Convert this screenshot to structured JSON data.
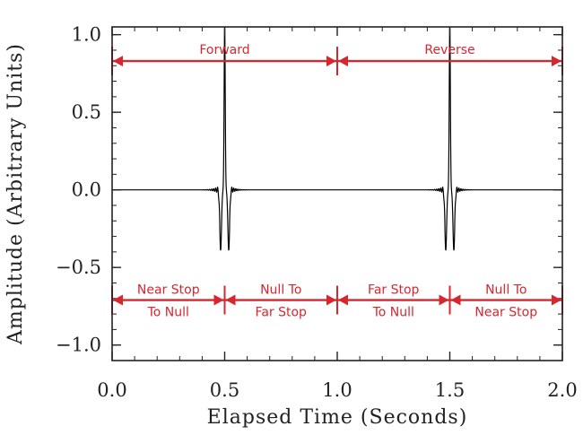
{
  "chart_data": {
    "type": "line",
    "xlabel": "Elapsed Time (Seconds)",
    "ylabel": "Amplitude (Arbitrary Units)",
    "xlim": [
      0.0,
      2.0
    ],
    "ylim": [
      -1.1,
      1.05
    ],
    "x_ticks": [
      "0.0",
      "0.5",
      "1.0",
      "1.5",
      "2.0"
    ],
    "y_ticks": [
      "1.0",
      "0.5",
      "0.0",
      "−0.5",
      "−1.0"
    ],
    "x_tick_values": [
      0.0,
      0.5,
      1.0,
      1.5,
      2.0
    ],
    "y_tick_values": [
      1.0,
      0.5,
      0.0,
      -0.5,
      -1.0
    ],
    "series": [
      {
        "color": "#000000",
        "description_points": "baseline 0 with small ringing; at each pulse two negative lobes near -0.39 and a central spike to about 1.05",
        "pulses": [
          {
            "center": 0.5,
            "lobe_left_x": 0.482,
            "lobe_right_x": 0.518,
            "lobe_y": -0.39,
            "peak_y": 1.05
          },
          {
            "center": 1.5,
            "lobe_left_x": 1.482,
            "lobe_right_x": 1.518,
            "lobe_y": -0.39,
            "peak_y": 1.05
          }
        ]
      }
    ],
    "annotation_color": "#d8262e",
    "dividers_x": [
      0.0,
      0.5,
      1.0,
      1.5,
      2.0
    ],
    "top_row": {
      "y": 0.83,
      "segments": [
        {
          "from": 0.0,
          "to": 1.0,
          "label": "Forward"
        },
        {
          "from": 1.0,
          "to": 2.0,
          "label": "Reverse"
        }
      ]
    },
    "bottom_row": {
      "y": -0.71,
      "segments": [
        {
          "from": 0.0,
          "to": 0.5,
          "line1": "Near Stop",
          "line2": "To Null"
        },
        {
          "from": 0.5,
          "to": 1.0,
          "line1": "Null To",
          "line2": "Far Stop"
        },
        {
          "from": 1.0,
          "to": 1.5,
          "line1": "Far Stop",
          "line2": "To Null"
        },
        {
          "from": 1.5,
          "to": 2.0,
          "line1": "Null To",
          "line2": "Near Stop"
        }
      ]
    }
  }
}
